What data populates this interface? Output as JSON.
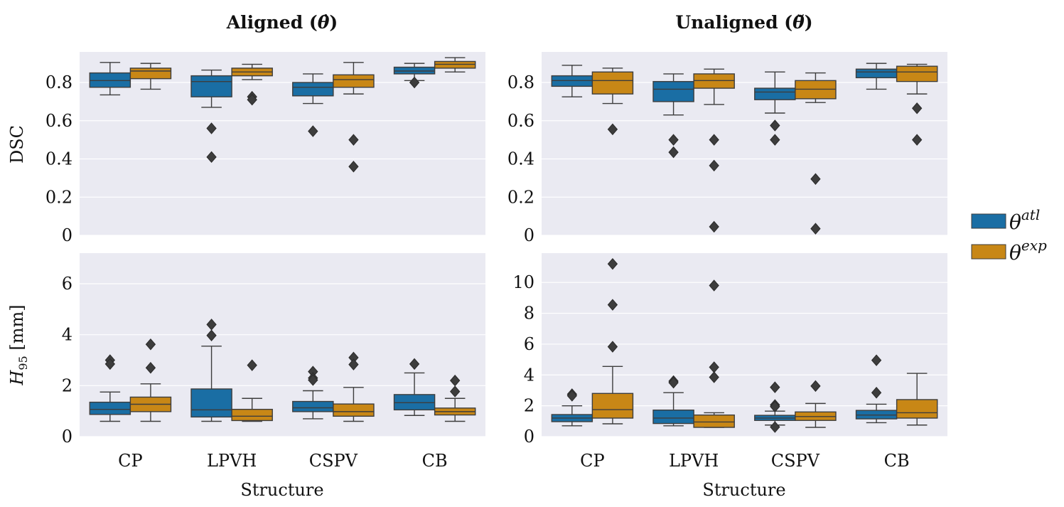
{
  "figure": {
    "titles": [
      "Aligned (θ̇)",
      "Unaligned (θ̆)"
    ],
    "xlabel": "Structure",
    "ylabels": [
      "DSC",
      "H95 [mm]"
    ],
    "legend": {
      "placement": "right",
      "entries": [
        {
          "base": "θ",
          "sup": "atl",
          "color": "#1a6ea4"
        },
        {
          "base": "θ",
          "sup": "exp",
          "color": "#c88716"
        }
      ]
    },
    "colors": {
      "panel_bg": "#eaeaf2",
      "grid": "#ffffff",
      "atl": "#1a6ea4",
      "exp": "#c88716",
      "line": "#3d3d3d",
      "outlier": "#3d3d3d"
    }
  },
  "chart_data": [
    {
      "type": "box",
      "panel": "aligned-dsc",
      "title": "Aligned (θ̇)",
      "ylabel": "DSC",
      "xlabel": "",
      "ylim": [
        0,
        0.96
      ],
      "yticks": [
        0,
        0.2,
        0.4,
        0.6,
        0.8
      ],
      "ytick_labels": [
        "0",
        "0.2",
        "0.4",
        "0.6",
        "0.8"
      ],
      "grid": true,
      "categories": [
        "CP",
        "LPVH",
        "CSPV",
        "CB"
      ],
      "series": [
        {
          "name": "θatl",
          "boxes": [
            {
              "whislo": 0.735,
              "q1": 0.775,
              "med": 0.81,
              "q3": 0.85,
              "whishi": 0.905,
              "fliers": []
            },
            {
              "whislo": 0.67,
              "q1": 0.725,
              "med": 0.805,
              "q3": 0.835,
              "whishi": 0.865,
              "fliers": [
                0.56,
                0.41
              ]
            },
            {
              "whislo": 0.69,
              "q1": 0.73,
              "med": 0.775,
              "q3": 0.8,
              "whishi": 0.845,
              "fliers": [
                0.545
              ]
            },
            {
              "whislo": 0.81,
              "q1": 0.845,
              "med": 0.86,
              "q3": 0.88,
              "whishi": 0.9,
              "fliers": [
                0.8
              ]
            }
          ]
        },
        {
          "name": "θexp",
          "boxes": [
            {
              "whislo": 0.765,
              "q1": 0.82,
              "med": 0.86,
              "q3": 0.875,
              "whishi": 0.9,
              "fliers": []
            },
            {
              "whislo": 0.815,
              "q1": 0.835,
              "med": 0.855,
              "q3": 0.875,
              "whishi": 0.895,
              "fliers": [
                0.725,
                0.71
              ]
            },
            {
              "whislo": 0.74,
              "q1": 0.775,
              "med": 0.815,
              "q3": 0.84,
              "whishi": 0.905,
              "fliers": [
                0.5,
                0.36
              ]
            },
            {
              "whislo": 0.855,
              "q1": 0.875,
              "med": 0.895,
              "q3": 0.91,
              "whishi": 0.93,
              "fliers": []
            }
          ]
        }
      ]
    },
    {
      "type": "box",
      "panel": "unaligned-dsc",
      "title": "Unaligned (θ̆)",
      "ylabel": "",
      "xlabel": "",
      "ylim": [
        0,
        0.96
      ],
      "yticks": [
        0,
        0.2,
        0.4,
        0.6,
        0.8
      ],
      "ytick_labels": [
        "0",
        "0.2",
        "0.4",
        "0.6",
        "0.8"
      ],
      "grid": true,
      "categories": [
        "CP",
        "LPVH",
        "CSPV",
        "CB"
      ],
      "series": [
        {
          "name": "θatl",
          "boxes": [
            {
              "whislo": 0.725,
              "q1": 0.78,
              "med": 0.81,
              "q3": 0.835,
              "whishi": 0.89,
              "fliers": []
            },
            {
              "whislo": 0.63,
              "q1": 0.7,
              "med": 0.765,
              "q3": 0.805,
              "whishi": 0.845,
              "fliers": [
                0.5,
                0.435
              ]
            },
            {
              "whislo": 0.64,
              "q1": 0.71,
              "med": 0.75,
              "q3": 0.77,
              "whishi": 0.855,
              "fliers": [
                0.575,
                0.5
              ]
            },
            {
              "whislo": 0.765,
              "q1": 0.825,
              "med": 0.855,
              "q3": 0.87,
              "whishi": 0.9,
              "fliers": []
            }
          ]
        },
        {
          "name": "θexp",
          "boxes": [
            {
              "whislo": 0.69,
              "q1": 0.74,
              "med": 0.81,
              "q3": 0.855,
              "whishi": 0.875,
              "fliers": [
                0.555
              ]
            },
            {
              "whislo": 0.685,
              "q1": 0.77,
              "med": 0.81,
              "q3": 0.845,
              "whishi": 0.87,
              "fliers": [
                0.5,
                0.365,
                0.045
              ]
            },
            {
              "whislo": 0.695,
              "q1": 0.715,
              "med": 0.765,
              "q3": 0.81,
              "whishi": 0.85,
              "fliers": [
                0.295,
                0.035
              ]
            },
            {
              "whislo": 0.74,
              "q1": 0.805,
              "med": 0.855,
              "q3": 0.885,
              "whishi": 0.895,
              "fliers": [
                0.665,
                0.5
              ]
            }
          ]
        }
      ]
    },
    {
      "type": "box",
      "panel": "aligned-h95",
      "title": "",
      "ylabel": "H95 [mm]",
      "xlabel": "Structure",
      "ylim": [
        0,
        7.2
      ],
      "yticks": [
        0,
        2,
        4,
        6
      ],
      "ytick_labels": [
        "0",
        "2",
        "4",
        "6"
      ],
      "grid": true,
      "categories": [
        "CP",
        "LPVH",
        "CSPV",
        "CB"
      ],
      "series": [
        {
          "name": "θatl",
          "boxes": [
            {
              "whislo": 0.6,
              "q1": 0.87,
              "med": 1.07,
              "q3": 1.35,
              "whishi": 1.75,
              "fliers": [
                3.0,
                2.85
              ]
            },
            {
              "whislo": 0.6,
              "q1": 0.77,
              "med": 1.05,
              "q3": 1.87,
              "whishi": 3.55,
              "fliers": [
                4.4,
                3.97
              ]
            },
            {
              "whislo": 0.7,
              "q1": 0.98,
              "med": 1.13,
              "q3": 1.38,
              "whishi": 1.8,
              "fliers": [
                2.55,
                2.3,
                2.22
              ]
            },
            {
              "whislo": 0.83,
              "q1": 1.05,
              "med": 1.33,
              "q3": 1.65,
              "whishi": 2.5,
              "fliers": [
                2.85
              ]
            }
          ]
        },
        {
          "name": "θexp",
          "boxes": [
            {
              "whislo": 0.6,
              "q1": 0.98,
              "med": 1.27,
              "q3": 1.55,
              "whishi": 2.07,
              "fliers": [
                3.62,
                2.7
              ]
            },
            {
              "whislo": 0.6,
              "q1": 0.63,
              "med": 0.8,
              "q3": 1.07,
              "whishi": 1.5,
              "fliers": [
                2.8
              ]
            },
            {
              "whislo": 0.6,
              "q1": 0.8,
              "med": 0.98,
              "q3": 1.28,
              "whishi": 1.93,
              "fliers": [
                3.1,
                2.83
              ]
            },
            {
              "whislo": 0.6,
              "q1": 0.85,
              "med": 0.98,
              "q3": 1.12,
              "whishi": 1.5,
              "fliers": [
                2.2,
                1.77
              ]
            }
          ]
        }
      ]
    },
    {
      "type": "box",
      "panel": "unaligned-h95",
      "title": "",
      "ylabel": "",
      "xlabel": "Structure",
      "ylim": [
        0,
        11.9
      ],
      "yticks": [
        0,
        2,
        4,
        6,
        8,
        10
      ],
      "ytick_labels": [
        "0",
        "2",
        "4",
        "6",
        "8",
        "10"
      ],
      "grid": true,
      "categories": [
        "CP",
        "LPVH",
        "CSPV",
        "CB"
      ],
      "series": [
        {
          "name": "θatl",
          "boxes": [
            {
              "whislo": 0.7,
              "q1": 0.97,
              "med": 1.2,
              "q3": 1.43,
              "whishi": 2.0,
              "fliers": [
                2.75,
                2.65
              ]
            },
            {
              "whislo": 0.7,
              "q1": 0.85,
              "med": 1.2,
              "q3": 1.72,
              "whishi": 2.85,
              "fliers": [
                3.6,
                3.5
              ]
            },
            {
              "whislo": 0.75,
              "q1": 1.05,
              "med": 1.2,
              "q3": 1.38,
              "whishi": 1.65,
              "fliers": [
                3.2,
                2.05,
                1.95,
                0.62
              ]
            },
            {
              "whislo": 0.9,
              "q1": 1.15,
              "med": 1.4,
              "q3": 1.7,
              "whishi": 2.1,
              "fliers": [
                4.95,
                2.85
              ]
            }
          ]
        },
        {
          "name": "θexp",
          "boxes": [
            {
              "whislo": 0.83,
              "q1": 1.2,
              "med": 1.75,
              "q3": 2.8,
              "whishi": 4.55,
              "fliers": [
                11.2,
                8.55,
                5.83
              ]
            },
            {
              "whislo": 0.6,
              "q1": 0.6,
              "med": 0.95,
              "q3": 1.4,
              "whishi": 1.55,
              "fliers": [
                9.8,
                4.5,
                3.85
              ]
            },
            {
              "whislo": 0.6,
              "q1": 1.05,
              "med": 1.3,
              "q3": 1.6,
              "whishi": 2.15,
              "fliers": [
                3.28
              ]
            },
            {
              "whislo": 0.75,
              "q1": 1.2,
              "med": 1.55,
              "q3": 2.4,
              "whishi": 4.1,
              "fliers": []
            }
          ]
        }
      ]
    }
  ]
}
